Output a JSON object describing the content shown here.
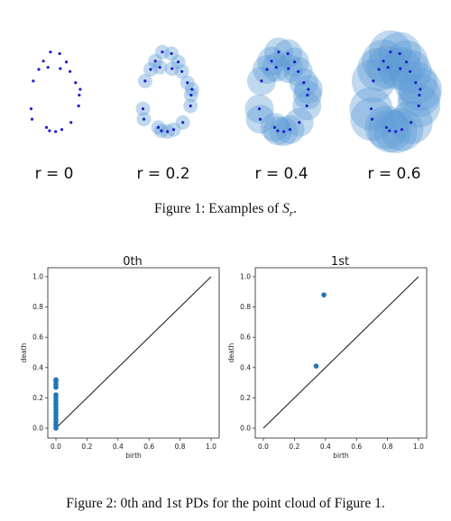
{
  "figure1": {
    "panel_labels": [
      "r = 0",
      "r = 0.2",
      "r = 0.4",
      "r = 0.6"
    ],
    "radii": [
      0,
      0.2,
      0.4,
      0.6
    ],
    "caption": "Figure 1: Examples of",
    "caption_math": "S",
    "caption_sub": "r",
    "caption_end": ".",
    "point_color": "#1f1fd0",
    "ball_color": "#5b9bd5",
    "points": [
      [
        -0.12,
        0.92
      ],
      [
        0.18,
        0.88
      ],
      [
        -0.35,
        0.7
      ],
      [
        0.4,
        0.68
      ],
      [
        -0.5,
        0.5
      ],
      [
        -0.2,
        0.55
      ],
      [
        0.2,
        0.52
      ],
      [
        0.52,
        0.45
      ],
      [
        -0.68,
        0.22
      ],
      [
        0.7,
        0.18
      ],
      [
        0.85,
        0.02
      ],
      [
        0.82,
        -0.12
      ],
      [
        -0.75,
        -0.45
      ],
      [
        0.8,
        -0.38
      ],
      [
        -0.72,
        -0.7
      ],
      [
        -0.25,
        -0.9
      ],
      [
        -0.15,
        -0.98
      ],
      [
        0.05,
        -1.0
      ],
      [
        0.25,
        -0.95
      ],
      [
        0.55,
        -0.78
      ]
    ]
  },
  "figure2": {
    "caption": "Figure 2: 0th and 1st PDs for the point cloud of Figure 1.",
    "chart_data": [
      {
        "type": "scatter",
        "title": "0th",
        "xlabel": "birth",
        "ylabel": "death",
        "xlim": [
          0,
          1
        ],
        "ylim": [
          0,
          1
        ],
        "ticks": [
          "0.0",
          "0.2",
          "0.4",
          "0.6",
          "0.8",
          "1.0"
        ],
        "color": "#1f77b4",
        "points": [
          [
            0,
            0.0
          ],
          [
            0,
            0.02
          ],
          [
            0,
            0.04
          ],
          [
            0,
            0.06
          ],
          [
            0,
            0.08
          ],
          [
            0,
            0.1
          ],
          [
            0,
            0.12
          ],
          [
            0,
            0.14
          ],
          [
            0,
            0.16
          ],
          [
            0,
            0.18
          ],
          [
            0,
            0.2
          ],
          [
            0,
            0.22
          ],
          [
            0,
            0.27
          ],
          [
            0,
            0.29
          ],
          [
            0,
            0.31
          ],
          [
            0,
            0.32
          ]
        ]
      },
      {
        "type": "scatter",
        "title": "1st",
        "xlabel": "birth",
        "ylabel": "death",
        "xlim": [
          0,
          1
        ],
        "ylim": [
          0,
          1
        ],
        "ticks": [
          "0.0",
          "0.2",
          "0.4",
          "0.6",
          "0.8",
          "1.0"
        ],
        "color": "#1f77b4",
        "points": [
          [
            0.34,
            0.41
          ],
          [
            0.39,
            0.88
          ]
        ]
      }
    ]
  }
}
